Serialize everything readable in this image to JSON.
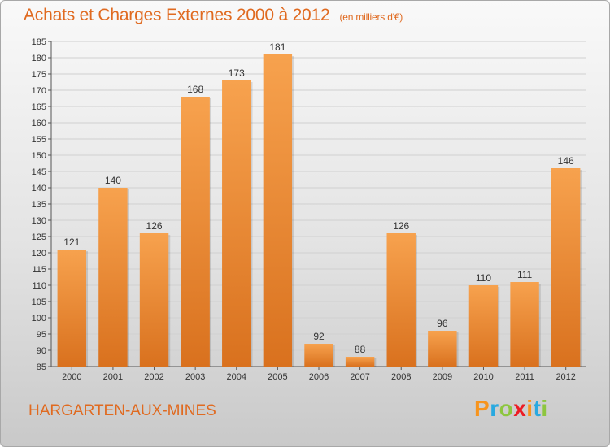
{
  "title": "Achats et Charges Externes 2000 à 2012",
  "title_unit": "(en milliers d'€)",
  "commune": "HARGARTEN-AUX-MINES",
  "logo": {
    "letters": [
      "P",
      "r",
      "o",
      "x",
      "i",
      "t",
      "i"
    ],
    "colors": [
      "#f7941d",
      "#29a9e0",
      "#8dc63f",
      "#ec1c24",
      "#f7941d",
      "#29a9e0",
      "#8dc63f"
    ]
  },
  "colors": {
    "bar_top": "#f7a24e",
    "bar_bottom": "#d9711e",
    "title": "#e06a20",
    "grid": "#d0d0d0"
  },
  "chart_data": {
    "type": "bar",
    "categories": [
      "2000",
      "2001",
      "2002",
      "2003",
      "2004",
      "2005",
      "2006",
      "2007",
      "2008",
      "2009",
      "2010",
      "2011",
      "2012"
    ],
    "values": [
      121,
      140,
      126,
      168,
      173,
      181,
      92,
      88,
      126,
      96,
      110,
      111,
      146
    ],
    "ylim": [
      85,
      185
    ],
    "ytick_step": 5,
    "grid": true,
    "data_labels": true
  }
}
